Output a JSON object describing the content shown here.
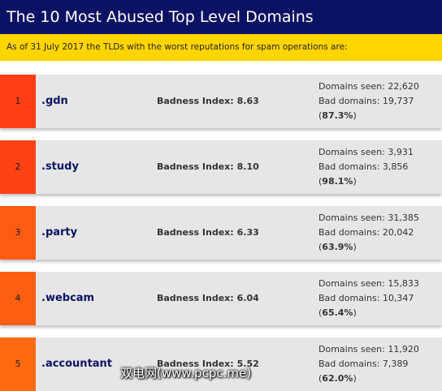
{
  "header": {
    "title": "The 10 Most Abused Top Level Domains",
    "subtitle": "As of 31 July 2017 the TLDs with the worst reputations for spam operations are:"
  },
  "labels": {
    "badness": "Badness Index:",
    "domains_seen": "Domains seen:",
    "bad_domains": "Bad domains:"
  },
  "rows": [
    {
      "rank": "1",
      "tld": ".gdn",
      "badness": "8.63",
      "domains_seen": "22,620",
      "bad_domains": "19,737",
      "percent": "87.3%",
      "color": "#ff3d14"
    },
    {
      "rank": "2",
      "tld": ".study",
      "badness": "8.10",
      "domains_seen": "3,931",
      "bad_domains": "3,856",
      "percent": "98.1%",
      "color": "#ff4214"
    },
    {
      "rank": "3",
      "tld": ".party",
      "badness": "6.33",
      "domains_seen": "31,385",
      "bad_domains": "20,042",
      "percent": "63.9%",
      "color": "#ff5a12"
    },
    {
      "rank": "4",
      "tld": ".webcam",
      "badness": "6.04",
      "domains_seen": "15,833",
      "bad_domains": "10,347",
      "percent": "65.4%",
      "color": "#ff5e12"
    },
    {
      "rank": "5",
      "tld": ".accountant",
      "badness": "5.52",
      "domains_seen": "11,920",
      "bad_domains": "7,389",
      "percent": "62.0%",
      "color": "#ff6a10"
    }
  ],
  "watermark": "双电网(www.pcpc.me)"
}
